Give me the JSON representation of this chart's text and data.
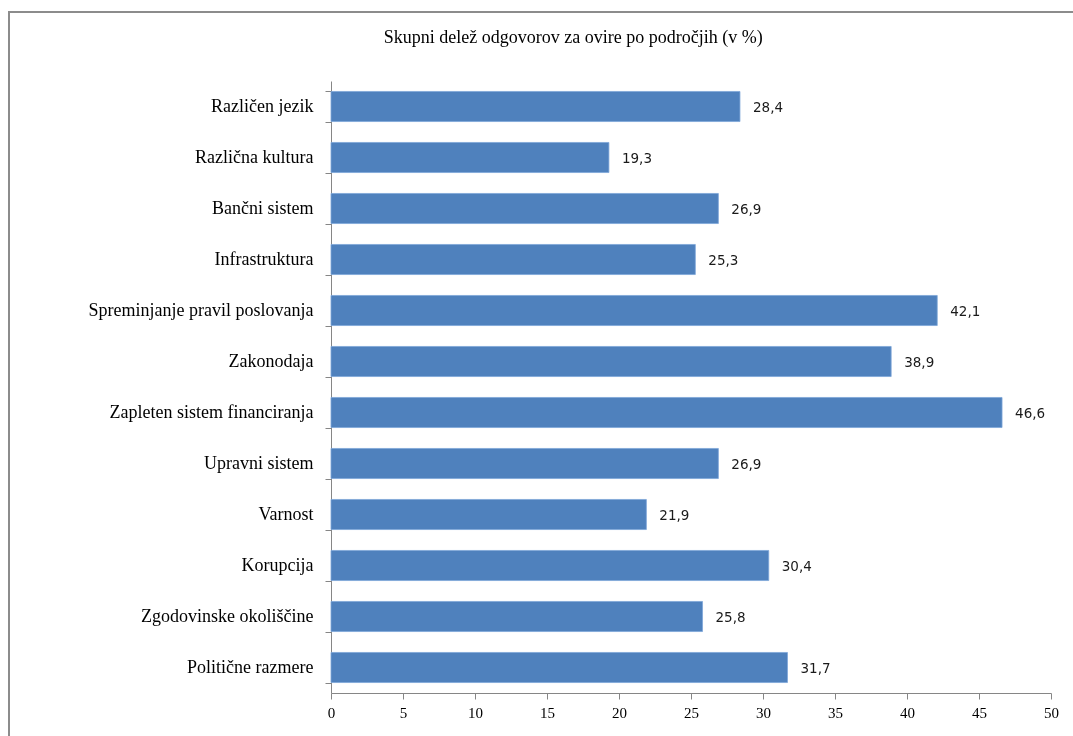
{
  "chart_data": {
    "type": "bar",
    "orientation": "horizontal",
    "title": "Skupni delež odgovorov za ovire po področjih (v %)",
    "categories": [
      "Različen jezik",
      "Različna kultura",
      "Bančni sistem",
      "Infrastruktura",
      "Spreminjanje pravil poslovanja",
      "Zakonodaja",
      "Zapleten sistem financiranja",
      "Upravni sistem",
      "Varnost",
      "Korupcija",
      "Zgodovinske okoliščine",
      "Politične razmere"
    ],
    "values": [
      28.4,
      19.3,
      26.9,
      25.3,
      42.1,
      38.9,
      46.6,
      26.9,
      21.9,
      30.4,
      25.8,
      31.7
    ],
    "value_labels": [
      "28,4",
      "19,3",
      "26,9",
      "25,3",
      "42,1",
      "38,9",
      "46,6",
      "26,9",
      "21,9",
      "30,4",
      "25,8",
      "31,7"
    ],
    "color": "#4f81bd",
    "xlim": [
      0,
      50
    ],
    "xticks": [
      0,
      5,
      10,
      15,
      20,
      25,
      30,
      35,
      40,
      45,
      50
    ]
  }
}
